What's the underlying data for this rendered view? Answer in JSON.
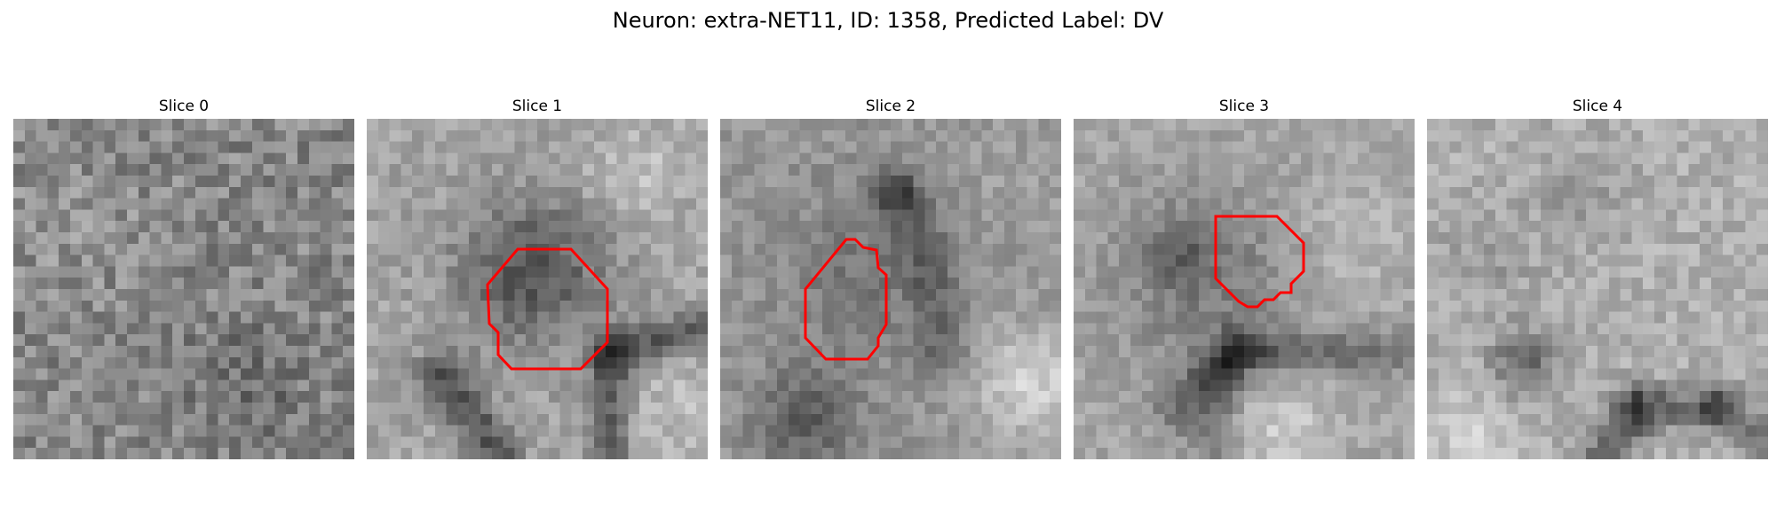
{
  "figure": {
    "title": "Neuron: extra-NET11, ID: 1358, Predicted Label: DV"
  },
  "colors": {
    "background": "#ffffff",
    "contour": "#ff0000"
  },
  "slices": [
    {
      "label": "Slice 0",
      "has_contour": false
    },
    {
      "label": "Slice 1",
      "has_contour": true
    },
    {
      "label": "Slice 2",
      "has_contour": true
    },
    {
      "label": "Slice 3",
      "has_contour": true
    },
    {
      "label": "Slice 4",
      "has_contour": false
    }
  ],
  "image": {
    "colormap": "grayscale",
    "grid": "30x30 pixels per slice"
  }
}
